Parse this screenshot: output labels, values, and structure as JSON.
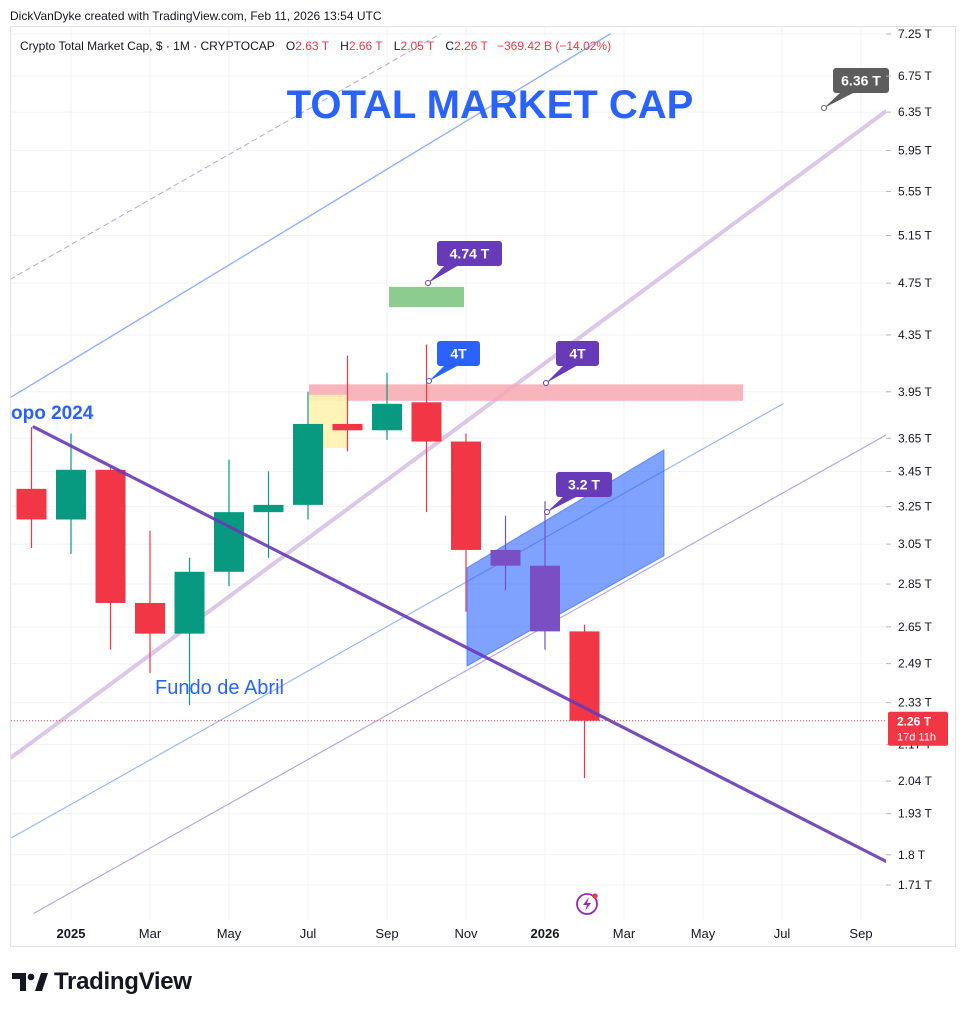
{
  "attribution": "DickVanDyke created with TradingView.com, Feb 11, 2026 13:54 UTC",
  "legend": {
    "symbol": "Crypto Total Market Cap, $ · 1M · CRYPTOCAP",
    "o_label": "O",
    "o_value": "2.63 T",
    "h_label": "H",
    "h_value": "2.66 T",
    "l_label": "L",
    "l_value": "2.05 T",
    "c_label": "C",
    "c_value": "2.26 T",
    "change": "−369.42 B (−14.02%)"
  },
  "brand": "TradingView",
  "colors": {
    "up": "#089981",
    "down": "#f23645",
    "purple": "#673ab7",
    "blue": "#2962ff"
  },
  "chart_data": {
    "type": "candlestick",
    "title": "TOTAL MARKET CAP",
    "y_scale": "log",
    "ylim": [
      1.62,
      7.3
    ],
    "xlim": [
      "2024-11",
      "2026-09"
    ],
    "y_ticks": [
      "7.25 T",
      "6.75 T",
      "6.35 T",
      "5.95 T",
      "5.55 T",
      "5.15 T",
      "4.75 T",
      "4.35 T",
      "3.95 T",
      "3.65 T",
      "3.45 T",
      "3.25 T",
      "3.05 T",
      "2.85 T",
      "2.65 T",
      "2.49 T",
      "2.33 T",
      "2.17 T",
      "2.04 T",
      "1.93 T",
      "1.8 T",
      "1.71 T"
    ],
    "y_tick_values": [
      7.25,
      6.75,
      6.35,
      5.95,
      5.55,
      5.15,
      4.75,
      4.35,
      3.95,
      3.65,
      3.45,
      3.25,
      3.05,
      2.85,
      2.65,
      2.49,
      2.33,
      2.17,
      2.04,
      1.93,
      1.8,
      1.71
    ],
    "x_ticks": [
      {
        "label": "2025",
        "month": "2025-01",
        "bold": true
      },
      {
        "label": "Mar",
        "month": "2025-03"
      },
      {
        "label": "May",
        "month": "2025-05"
      },
      {
        "label": "Jul",
        "month": "2025-07"
      },
      {
        "label": "Sep",
        "month": "2025-09"
      },
      {
        "label": "Nov",
        "month": "2025-11"
      },
      {
        "label": "2026",
        "month": "2026-01",
        "bold": true
      },
      {
        "label": "Mar",
        "month": "2026-03"
      },
      {
        "label": "May",
        "month": "2026-05"
      },
      {
        "label": "Jul",
        "month": "2026-07"
      },
      {
        "label": "Sep",
        "month": "2026-09"
      }
    ],
    "candles": [
      {
        "month": "2024-12",
        "o": 3.35,
        "h": 3.72,
        "l": 3.03,
        "c": 3.18,
        "color": "down"
      },
      {
        "month": "2025-01",
        "o": 3.18,
        "h": 3.68,
        "l": 3.0,
        "c": 3.46,
        "color": "up"
      },
      {
        "month": "2025-02",
        "o": 3.46,
        "h": 3.48,
        "l": 2.55,
        "c": 2.76,
        "color": "down"
      },
      {
        "month": "2025-03",
        "o": 2.76,
        "h": 3.12,
        "l": 2.45,
        "c": 2.62,
        "color": "down"
      },
      {
        "month": "2025-04",
        "o": 2.62,
        "h": 2.98,
        "l": 2.32,
        "c": 2.91,
        "color": "up"
      },
      {
        "month": "2025-05",
        "o": 2.91,
        "h": 3.52,
        "l": 2.84,
        "c": 3.22,
        "color": "up"
      },
      {
        "month": "2025-06",
        "o": 3.22,
        "h": 3.45,
        "l": 2.98,
        "c": 3.26,
        "color": "up"
      },
      {
        "month": "2025-07",
        "o": 3.26,
        "h": 3.95,
        "l": 3.18,
        "c": 3.74,
        "color": "up"
      },
      {
        "month": "2025-08",
        "o": 3.74,
        "h": 4.2,
        "l": 3.57,
        "c": 3.7,
        "color": "down"
      },
      {
        "month": "2025-09",
        "o": 3.7,
        "h": 4.08,
        "l": 3.64,
        "c": 3.87,
        "color": "up"
      },
      {
        "month": "2025-10",
        "o": 3.88,
        "h": 4.28,
        "l": 3.22,
        "c": 3.63,
        "color": "down"
      },
      {
        "month": "2025-11",
        "o": 3.63,
        "h": 3.68,
        "l": 2.72,
        "c": 3.02,
        "color": "down"
      },
      {
        "month": "2025-12",
        "o": 3.02,
        "h": 3.2,
        "l": 2.82,
        "c": 2.94,
        "color": "purple"
      },
      {
        "month": "2026-01",
        "o": 2.94,
        "h": 3.28,
        "l": 2.55,
        "c": 2.63,
        "color": "purple"
      },
      {
        "month": "2026-02",
        "o": 2.63,
        "h": 2.66,
        "l": 2.05,
        "c": 2.26,
        "color": "down"
      }
    ],
    "last_price": {
      "label": "2.26 T",
      "countdown": "17d 11h",
      "value": 2.26
    },
    "annotations": [
      {
        "label": "TOTAL MARKET CAP",
        "kind": "title"
      },
      {
        "label": "6.36 T",
        "kind": "callout",
        "color": "#5d5d5d",
        "value": 6.36
      },
      {
        "label": "4.74 T",
        "kind": "callout",
        "color": "#673ab7",
        "value": 4.74
      },
      {
        "label": "4T",
        "kind": "callout",
        "color": "#2962ff",
        "value": 3.97
      },
      {
        "label": "4T",
        "kind": "callout",
        "color": "#673ab7",
        "value": 3.97
      },
      {
        "label": "3.2 T",
        "kind": "callout",
        "color": "#673ab7",
        "value": 3.2
      },
      {
        "label": "Fundo de Abril",
        "kind": "text",
        "color": "#2962ff"
      },
      {
        "label": "opo 2024",
        "kind": "text",
        "color": "#2962ff"
      }
    ]
  }
}
